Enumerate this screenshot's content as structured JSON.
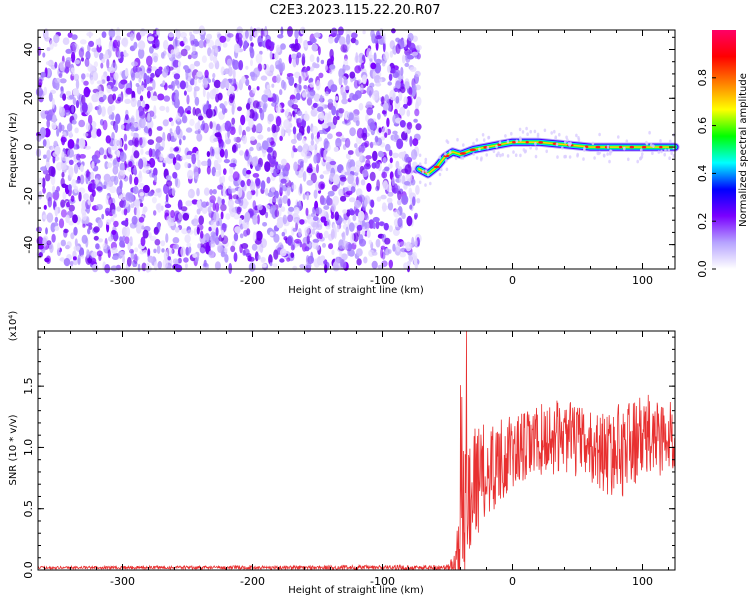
{
  "title": "C2E3.2023.115.22.20.R07",
  "chart_data": [
    {
      "type": "heatmap",
      "xlabel": "Height of straight line (km)",
      "ylabel": "Frequency (Hz)",
      "xlim": [
        -365,
        125
      ],
      "ylim": [
        -50,
        48
      ],
      "xticks": [
        -300,
        -200,
        -100,
        0,
        100
      ],
      "yticks": [
        -40,
        -20,
        0,
        20,
        40
      ],
      "noise_region_x": [
        -365,
        -72
      ],
      "ridge": {
        "x": [
          -72,
          -65,
          -58,
          -52,
          -46,
          -40,
          -30,
          -20,
          -10,
          0,
          20,
          40,
          60,
          80,
          100,
          125
        ],
        "y": [
          -9,
          -11,
          -8,
          -4,
          -2,
          -3,
          -1,
          0,
          1,
          2,
          2,
          1,
          0,
          0,
          0,
          0
        ]
      }
    },
    {
      "type": "colorbar",
      "label": "Normalized spectral amplitude",
      "range": [
        0,
        1
      ],
      "ticks": [
        "0.0",
        "0.2",
        "0.4",
        "0.6",
        "0.8"
      ],
      "colors": [
        "#ffffff",
        "#b6a3ff",
        "#7a00ff",
        "#0000ff",
        "#00ffff",
        "#00ff00",
        "#ffff00",
        "#ff7f00",
        "#ff0000",
        "#ff0066"
      ]
    },
    {
      "type": "line",
      "xlabel": "Height of straight line (km)",
      "ylabel": "SNR (10 * v/v)",
      "yscale_label": "(x10⁴)",
      "xlim": [
        -365,
        125
      ],
      "ylim": [
        0,
        1.95
      ],
      "xticks": [
        -300,
        -200,
        -100,
        0,
        100
      ],
      "yticks": [
        "0.0",
        "0.5",
        "1.0",
        "1.5"
      ],
      "ytick_values": [
        0,
        0.5,
        1.0,
        1.5
      ],
      "color": "#e83030",
      "envelope": {
        "x": [
          -365,
          -50,
          -44,
          -40,
          -36,
          -33,
          -30,
          -25,
          -20,
          -10,
          0,
          20,
          40,
          60,
          75,
          85,
          95,
          110,
          125
        ],
        "base": [
          0.02,
          0.02,
          0.05,
          0.3,
          0.5,
          0.7,
          0.75,
          0.75,
          0.8,
          0.9,
          0.95,
          1.05,
          1.1,
          1.0,
          0.95,
          1.0,
          1.05,
          1.1,
          1.05
        ],
        "amp": [
          0.01,
          0.02,
          0.1,
          0.5,
          0.7,
          0.55,
          0.45,
          0.45,
          0.4,
          0.35,
          0.3,
          0.3,
          0.3,
          0.3,
          0.35,
          0.4,
          0.35,
          0.35,
          0.3
        ]
      }
    }
  ]
}
